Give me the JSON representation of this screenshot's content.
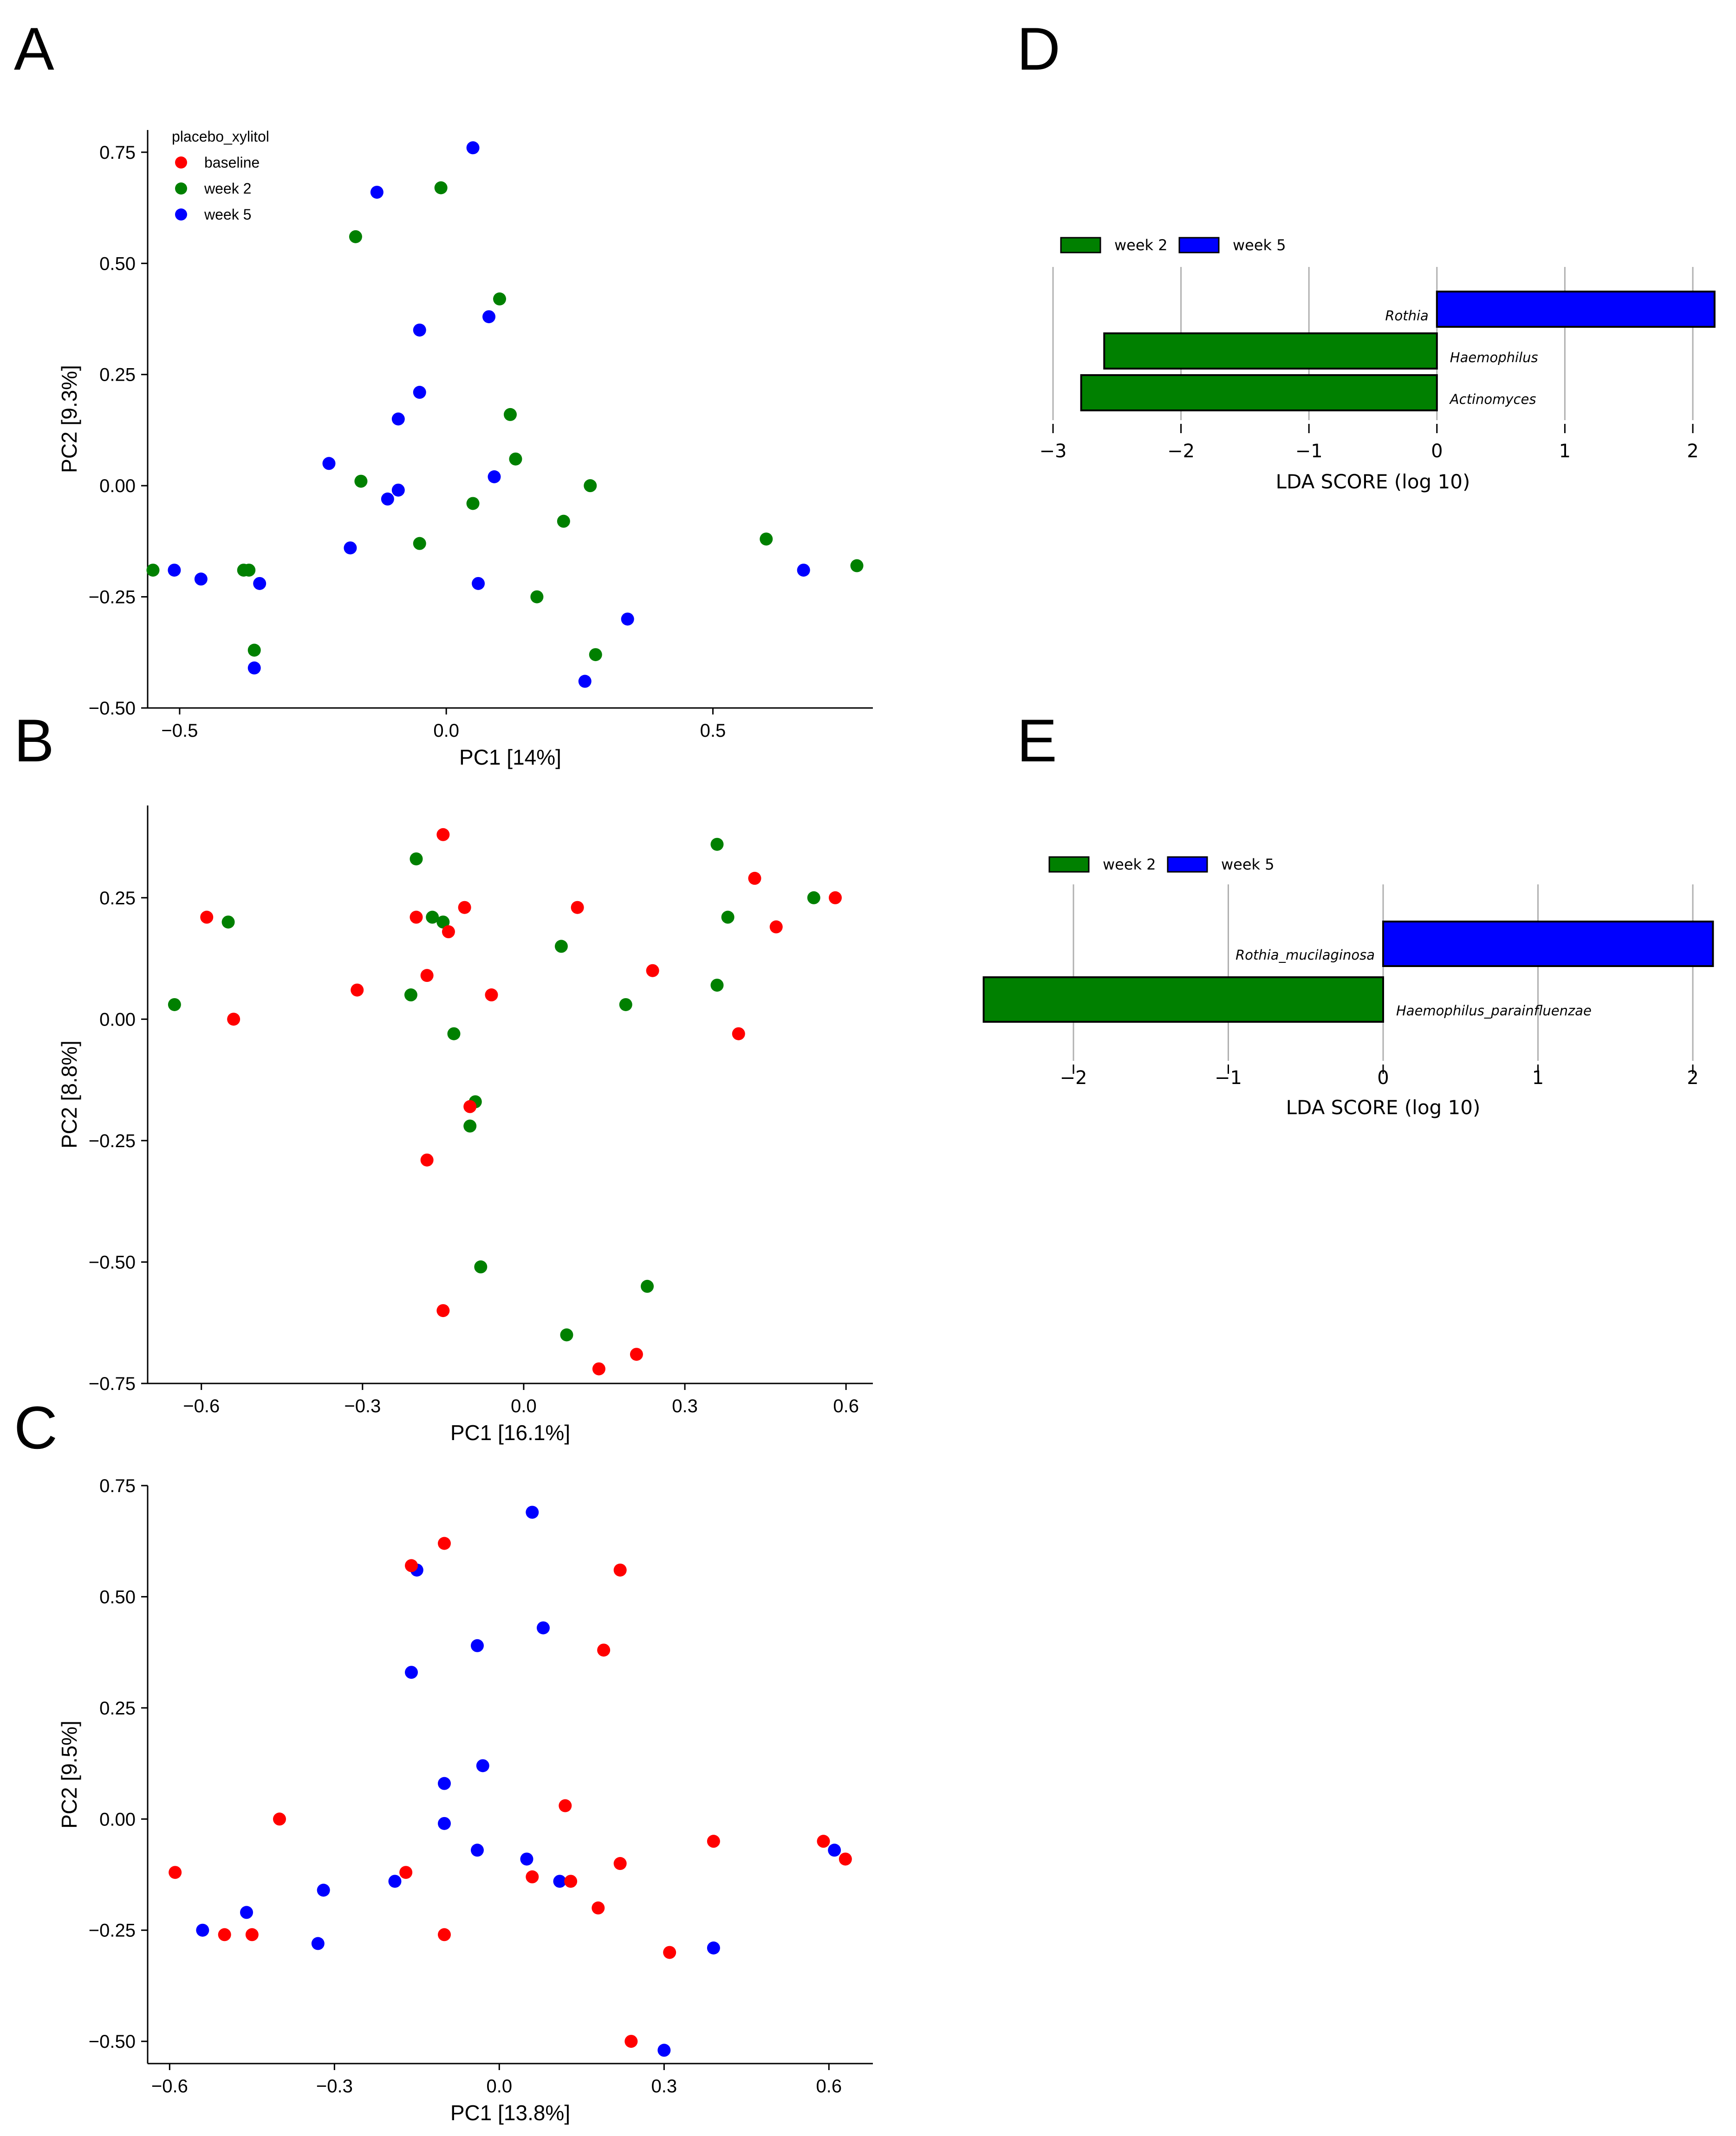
{
  "colors": {
    "baseline": "#ff0000",
    "week 2": "#008000",
    "week 5": "#0000ff"
  },
  "chart_data": [
    {
      "panel": "A",
      "type": "scatter",
      "xlabel": "PC1 [14%]",
      "ylabel": "PC2 [9.3%]",
      "xlim": [
        -0.56,
        0.8
      ],
      "ylim": [
        -0.5,
        0.8
      ],
      "xticks": [
        -0.5,
        0,
        0.5
      ],
      "xtick_labels": [
        "−0.5",
        "0.0",
        "0.5"
      ],
      "yticks": [
        -0.5,
        -0.25,
        0,
        0.25,
        0.5,
        0.75
      ],
      "ytick_labels": [
        "−0.50",
        "−0.25",
        "0.00",
        "0.25",
        "0.50",
        "0.75"
      ],
      "legend": {
        "title": "placebo_xylitol",
        "entries": [
          "baseline",
          "week 2",
          "week 5"
        ]
      },
      "series": [
        {
          "name": "week 2",
          "points": [
            [
              -0.55,
              -0.19
            ],
            [
              -0.38,
              -0.19
            ],
            [
              -0.37,
              -0.19
            ],
            [
              -0.36,
              -0.37
            ],
            [
              -0.17,
              0.56
            ],
            [
              -0.16,
              0.01
            ],
            [
              -0.05,
              -0.13
            ],
            [
              -0.01,
              0.67
            ],
            [
              0.05,
              -0.04
            ],
            [
              0.1,
              0.42
            ],
            [
              0.12,
              0.16
            ],
            [
              0.13,
              0.06
            ],
            [
              0.22,
              -0.08
            ],
            [
              0.17,
              -0.25
            ],
            [
              0.27,
              0.0
            ],
            [
              0.28,
              -0.38
            ],
            [
              0.6,
              -0.12
            ],
            [
              0.77,
              -0.18
            ]
          ]
        },
        {
          "name": "week 5",
          "points": [
            [
              -0.51,
              -0.19
            ],
            [
              -0.46,
              -0.21
            ],
            [
              -0.36,
              -0.41
            ],
            [
              -0.35,
              -0.22
            ],
            [
              -0.22,
              0.05
            ],
            [
              -0.18,
              -0.14
            ],
            [
              -0.13,
              0.66
            ],
            [
              -0.11,
              -0.03
            ],
            [
              -0.09,
              0.15
            ],
            [
              -0.09,
              -0.01
            ],
            [
              -0.05,
              0.21
            ],
            [
              -0.05,
              0.35
            ],
            [
              0.05,
              0.76
            ],
            [
              0.06,
              -0.22
            ],
            [
              0.08,
              0.38
            ],
            [
              0.09,
              0.02
            ],
            [
              0.26,
              -0.44
            ],
            [
              0.34,
              -0.3
            ],
            [
              0.67,
              -0.19
            ]
          ]
        }
      ]
    },
    {
      "panel": "B",
      "type": "scatter",
      "xlabel": "PC1 [16.1%]",
      "ylabel": "PC2 [8.8%]",
      "xlim": [
        -0.7,
        0.65
      ],
      "ylim": [
        -0.75,
        0.44
      ],
      "xticks": [
        -0.6,
        -0.3,
        0,
        0.3,
        0.6
      ],
      "xtick_labels": [
        "−0.6",
        "−0.3",
        "0.0",
        "0.3",
        "0.6"
      ],
      "yticks": [
        -0.75,
        -0.5,
        -0.25,
        0,
        0.25
      ],
      "ytick_labels": [
        "−0.75",
        "−0.50",
        "−0.25",
        "0.00",
        "0.25"
      ],
      "series": [
        {
          "name": "week 2",
          "points": [
            [
              -0.65,
              0.03
            ],
            [
              -0.55,
              0.2
            ],
            [
              -0.21,
              0.05
            ],
            [
              -0.2,
              0.33
            ],
            [
              -0.17,
              0.21
            ],
            [
              -0.15,
              0.2
            ],
            [
              -0.13,
              -0.03
            ],
            [
              -0.09,
              -0.17
            ],
            [
              -0.1,
              -0.22
            ],
            [
              -0.08,
              -0.51
            ],
            [
              0.07,
              0.15
            ],
            [
              0.08,
              -0.65
            ],
            [
              0.19,
              0.03
            ],
            [
              0.23,
              -0.55
            ],
            [
              0.36,
              0.36
            ],
            [
              0.36,
              0.07
            ],
            [
              0.38,
              0.21
            ],
            [
              0.54,
              0.25
            ]
          ]
        },
        {
          "name": "baseline",
          "points": [
            [
              -0.59,
              0.21
            ],
            [
              -0.54,
              0.0
            ],
            [
              -0.31,
              0.06
            ],
            [
              -0.2,
              0.21
            ],
            [
              -0.18,
              0.09
            ],
            [
              -0.18,
              -0.29
            ],
            [
              -0.15,
              0.38
            ],
            [
              -0.14,
              0.18
            ],
            [
              -0.11,
              0.23
            ],
            [
              -0.1,
              -0.18
            ],
            [
              -0.06,
              0.05
            ],
            [
              -0.15,
              -0.6
            ],
            [
              0.1,
              0.23
            ],
            [
              0.14,
              -0.72
            ],
            [
              0.21,
              -0.69
            ],
            [
              0.24,
              0.1
            ],
            [
              0.4,
              -0.03
            ],
            [
              0.43,
              0.29
            ],
            [
              0.47,
              0.19
            ],
            [
              0.58,
              0.25
            ]
          ]
        }
      ]
    },
    {
      "panel": "C",
      "type": "scatter",
      "xlabel": "PC1 [13.8%]",
      "ylabel": "PC2 [9.5%]",
      "xlim": [
        -0.64,
        0.68
      ],
      "ylim": [
        -0.55,
        0.75
      ],
      "xticks": [
        -0.6,
        -0.3,
        0,
        0.3,
        0.6
      ],
      "xtick_labels": [
        "−0.6",
        "−0.3",
        "0.0",
        "0.3",
        "0.6"
      ],
      "yticks": [
        -0.5,
        -0.25,
        0,
        0.25,
        0.5,
        0.75
      ],
      "ytick_labels": [
        "−0.50",
        "−0.25",
        "0.00",
        "0.25",
        "0.50",
        "0.75"
      ],
      "series": [
        {
          "name": "week 5",
          "points": [
            [
              -0.54,
              -0.25
            ],
            [
              -0.46,
              -0.21
            ],
            [
              -0.33,
              -0.28
            ],
            [
              -0.32,
              -0.16
            ],
            [
              -0.19,
              -0.14
            ],
            [
              -0.15,
              0.56
            ],
            [
              -0.16,
              0.33
            ],
            [
              -0.1,
              0.08
            ],
            [
              -0.1,
              -0.01
            ],
            [
              -0.04,
              0.39
            ],
            [
              -0.04,
              -0.07
            ],
            [
              -0.03,
              0.12
            ],
            [
              0.05,
              -0.09
            ],
            [
              0.06,
              0.69
            ],
            [
              0.08,
              0.43
            ],
            [
              0.11,
              -0.14
            ],
            [
              0.3,
              -0.52
            ],
            [
              0.39,
              -0.29
            ],
            [
              0.61,
              -0.07
            ]
          ]
        },
        {
          "name": "baseline",
          "points": [
            [
              -0.59,
              -0.12
            ],
            [
              -0.5,
              -0.26
            ],
            [
              -0.45,
              -0.26
            ],
            [
              -0.4,
              0.0
            ],
            [
              -0.17,
              -0.12
            ],
            [
              -0.16,
              0.57
            ],
            [
              -0.1,
              0.62
            ],
            [
              -0.1,
              -0.26
            ],
            [
              0.06,
              -0.13
            ],
            [
              0.12,
              0.03
            ],
            [
              0.13,
              -0.14
            ],
            [
              0.18,
              -0.2
            ],
            [
              0.19,
              0.38
            ],
            [
              0.22,
              0.56
            ],
            [
              0.22,
              -0.1
            ],
            [
              0.24,
              -0.5
            ],
            [
              0.31,
              -0.3
            ],
            [
              0.39,
              -0.05
            ],
            [
              0.59,
              -0.05
            ],
            [
              0.63,
              -0.09
            ]
          ]
        }
      ]
    },
    {
      "panel": "D",
      "type": "bar",
      "orientation": "horizontal",
      "xlabel": "LDA SCORE (log 10)",
      "xlim": [
        -3,
        2.2
      ],
      "xticks": [
        -3,
        -2,
        -1,
        0,
        1,
        2
      ],
      "xtick_labels": [
        "−3",
        "−2",
        "−1",
        "0",
        "1",
        "2"
      ],
      "legend": [
        "week 2",
        "week 5"
      ],
      "categories": [
        "Rothia",
        "Haemophilus",
        "Actinomyces"
      ],
      "values": [
        2.17,
        -2.6,
        -2.78
      ],
      "groups": [
        "week 5",
        "week 2",
        "week 2"
      ]
    },
    {
      "panel": "E",
      "type": "bar",
      "orientation": "horizontal",
      "xlabel": "LDA SCORE (log 10)",
      "xlim": [
        -2.6,
        2.2
      ],
      "xticks": [
        -2,
        -1,
        0,
        1,
        2
      ],
      "xtick_labels": [
        "−2",
        "−1",
        "0",
        "1",
        "2"
      ],
      "legend": [
        "week 2",
        "week 5"
      ],
      "categories": [
        "Rothia_mucilaginosa",
        "Haemophilus_parainfluenzae"
      ],
      "values": [
        2.13,
        -2.58
      ],
      "groups": [
        "week 5",
        "week 2"
      ]
    }
  ]
}
